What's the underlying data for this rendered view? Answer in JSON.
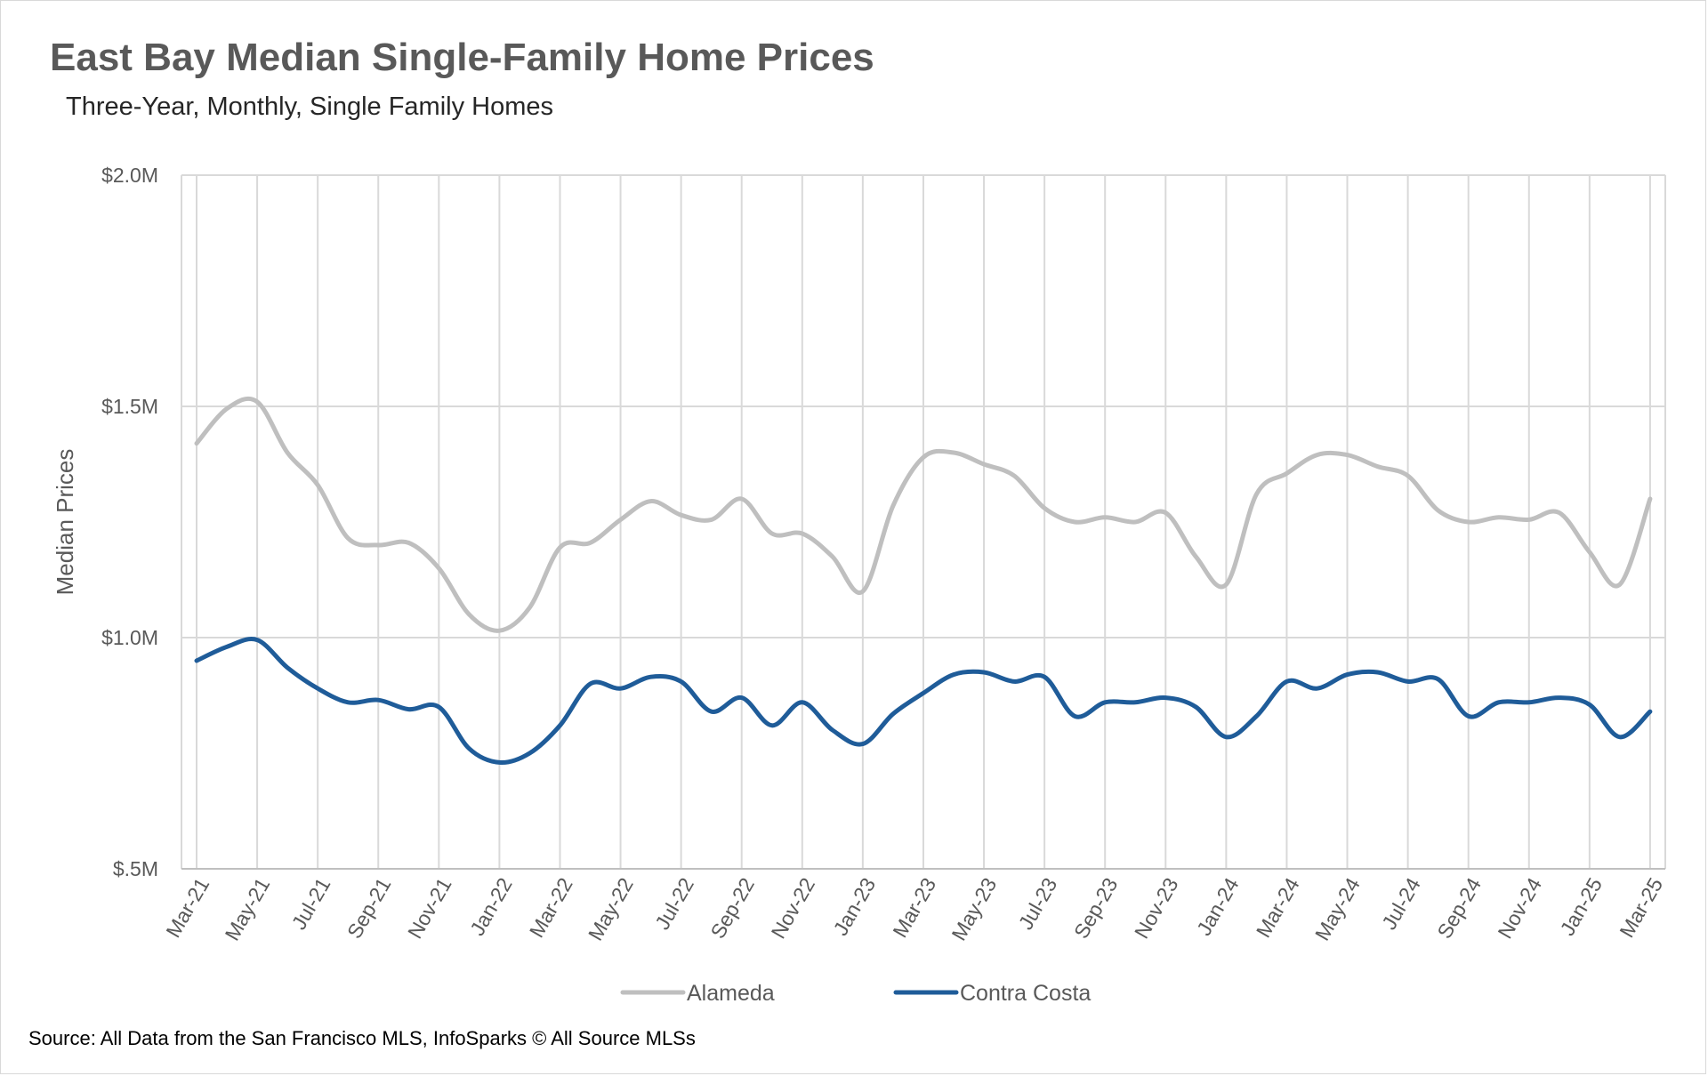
{
  "title": "East Bay Median Single-Family Home Prices",
  "subtitle": "Three-Year, Monthly, Single Family Homes",
  "source": "Source: All Data from the San Francisco MLS, InfoSparks © All Source MLSs",
  "chart_data": {
    "type": "line",
    "title": "East Bay Median Single-Family Home Prices",
    "subtitle": "Three-Year, Monthly, Single Family Homes",
    "xlabel": "",
    "ylabel": "Median Prices",
    "ylim": [
      500000,
      2000000
    ],
    "y_ticks": [
      500000,
      1000000,
      1500000,
      2000000
    ],
    "y_tick_labels": [
      "$.5M",
      "$1.0M",
      "$1.5M",
      "$2.0M"
    ],
    "grid": "vertical and horizontal",
    "legend_position": "bottom",
    "x": [
      "Mar-21",
      "Apr-21",
      "May-21",
      "Jun-21",
      "Jul-21",
      "Aug-21",
      "Sep-21",
      "Oct-21",
      "Nov-21",
      "Dec-21",
      "Jan-22",
      "Feb-22",
      "Mar-22",
      "Apr-22",
      "May-22",
      "Jun-22",
      "Jul-22",
      "Aug-22",
      "Sep-22",
      "Oct-22",
      "Nov-22",
      "Dec-22",
      "Jan-23",
      "Feb-23",
      "Mar-23",
      "Apr-23",
      "May-23",
      "Jun-23",
      "Jul-23",
      "Aug-23",
      "Sep-23",
      "Oct-23",
      "Nov-23",
      "Dec-23",
      "Jan-24",
      "Feb-24",
      "Mar-24",
      "Apr-24",
      "May-24",
      "Jun-24",
      "Jul-24",
      "Aug-24",
      "Sep-24",
      "Oct-24",
      "Nov-24",
      "Dec-24",
      "Jan-25",
      "Feb-25",
      "Mar-25"
    ],
    "x_tick_labels": [
      "Mar-21",
      "May-21",
      "Jul-21",
      "Sep-21",
      "Nov-21",
      "Jan-22",
      "Mar-22",
      "May-22",
      "Jul-22",
      "Sep-22",
      "Nov-22",
      "Jan-23",
      "Mar-23",
      "May-23",
      "Jul-23",
      "Sep-23",
      "Nov-23",
      "Jan-24",
      "Mar-24",
      "May-24",
      "Jul-24",
      "Sep-24",
      "Nov-24",
      "Jan-25",
      "Mar-25"
    ],
    "series": [
      {
        "name": "Alameda",
        "color": "#bfbfbf",
        "values": [
          1420000,
          1495000,
          1510000,
          1400000,
          1330000,
          1215000,
          1200000,
          1205000,
          1150000,
          1050000,
          1015000,
          1065000,
          1195000,
          1205000,
          1255000,
          1295000,
          1265000,
          1255000,
          1300000,
          1225000,
          1225000,
          1175000,
          1100000,
          1285000,
          1390000,
          1400000,
          1375000,
          1350000,
          1280000,
          1250000,
          1260000,
          1250000,
          1270000,
          1175000,
          1115000,
          1310000,
          1355000,
          1395000,
          1395000,
          1370000,
          1350000,
          1275000,
          1250000,
          1260000,
          1255000,
          1270000,
          1185000,
          1115000,
          1300000
        ]
      },
      {
        "name": "Contra Costa",
        "color": "#1f5c99",
        "values": [
          950000,
          980000,
          995000,
          935000,
          890000,
          860000,
          865000,
          845000,
          850000,
          760000,
          730000,
          750000,
          810000,
          900000,
          890000,
          915000,
          905000,
          840000,
          870000,
          810000,
          860000,
          800000,
          770000,
          835000,
          880000,
          920000,
          925000,
          905000,
          915000,
          830000,
          860000,
          860000,
          870000,
          850000,
          785000,
          830000,
          905000,
          890000,
          920000,
          925000,
          905000,
          910000,
          830000,
          860000,
          860000,
          870000,
          855000,
          785000,
          840000
        ]
      }
    ]
  }
}
